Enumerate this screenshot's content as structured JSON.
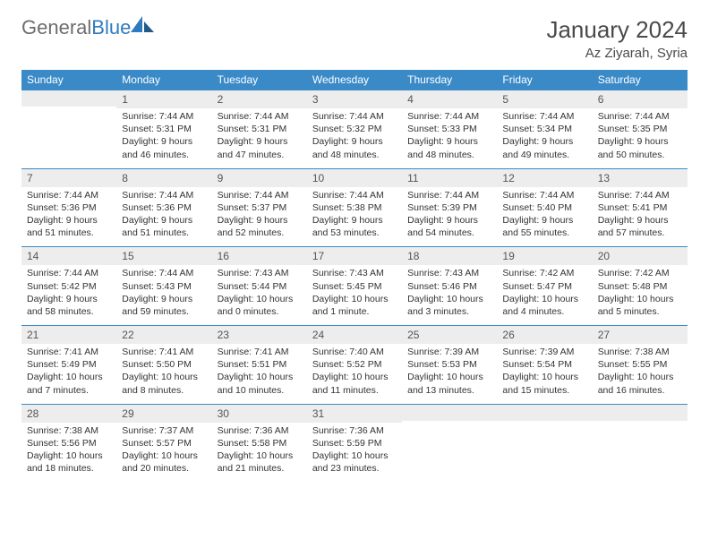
{
  "brand": {
    "part1": "General",
    "part2": "Blue"
  },
  "title": "January 2024",
  "location": "Az Ziyarah, Syria",
  "colors": {
    "header_bg": "#3a8ac8",
    "header_text": "#ffffff",
    "daynum_bg": "#ededed",
    "border": "#3a8ac8",
    "logo_gray": "#6d6d6d",
    "logo_blue": "#2f7bbf",
    "text": "#333333"
  },
  "dow": [
    "Sunday",
    "Monday",
    "Tuesday",
    "Wednesday",
    "Thursday",
    "Friday",
    "Saturday"
  ],
  "weeks": [
    [
      {
        "n": "",
        "l1": "",
        "l2": "",
        "l3": "",
        "l4": ""
      },
      {
        "n": "1",
        "l1": "Sunrise: 7:44 AM",
        "l2": "Sunset: 5:31 PM",
        "l3": "Daylight: 9 hours",
        "l4": "and 46 minutes."
      },
      {
        "n": "2",
        "l1": "Sunrise: 7:44 AM",
        "l2": "Sunset: 5:31 PM",
        "l3": "Daylight: 9 hours",
        "l4": "and 47 minutes."
      },
      {
        "n": "3",
        "l1": "Sunrise: 7:44 AM",
        "l2": "Sunset: 5:32 PM",
        "l3": "Daylight: 9 hours",
        "l4": "and 48 minutes."
      },
      {
        "n": "4",
        "l1": "Sunrise: 7:44 AM",
        "l2": "Sunset: 5:33 PM",
        "l3": "Daylight: 9 hours",
        "l4": "and 48 minutes."
      },
      {
        "n": "5",
        "l1": "Sunrise: 7:44 AM",
        "l2": "Sunset: 5:34 PM",
        "l3": "Daylight: 9 hours",
        "l4": "and 49 minutes."
      },
      {
        "n": "6",
        "l1": "Sunrise: 7:44 AM",
        "l2": "Sunset: 5:35 PM",
        "l3": "Daylight: 9 hours",
        "l4": "and 50 minutes."
      }
    ],
    [
      {
        "n": "7",
        "l1": "Sunrise: 7:44 AM",
        "l2": "Sunset: 5:36 PM",
        "l3": "Daylight: 9 hours",
        "l4": "and 51 minutes."
      },
      {
        "n": "8",
        "l1": "Sunrise: 7:44 AM",
        "l2": "Sunset: 5:36 PM",
        "l3": "Daylight: 9 hours",
        "l4": "and 51 minutes."
      },
      {
        "n": "9",
        "l1": "Sunrise: 7:44 AM",
        "l2": "Sunset: 5:37 PM",
        "l3": "Daylight: 9 hours",
        "l4": "and 52 minutes."
      },
      {
        "n": "10",
        "l1": "Sunrise: 7:44 AM",
        "l2": "Sunset: 5:38 PM",
        "l3": "Daylight: 9 hours",
        "l4": "and 53 minutes."
      },
      {
        "n": "11",
        "l1": "Sunrise: 7:44 AM",
        "l2": "Sunset: 5:39 PM",
        "l3": "Daylight: 9 hours",
        "l4": "and 54 minutes."
      },
      {
        "n": "12",
        "l1": "Sunrise: 7:44 AM",
        "l2": "Sunset: 5:40 PM",
        "l3": "Daylight: 9 hours",
        "l4": "and 55 minutes."
      },
      {
        "n": "13",
        "l1": "Sunrise: 7:44 AM",
        "l2": "Sunset: 5:41 PM",
        "l3": "Daylight: 9 hours",
        "l4": "and 57 minutes."
      }
    ],
    [
      {
        "n": "14",
        "l1": "Sunrise: 7:44 AM",
        "l2": "Sunset: 5:42 PM",
        "l3": "Daylight: 9 hours",
        "l4": "and 58 minutes."
      },
      {
        "n": "15",
        "l1": "Sunrise: 7:44 AM",
        "l2": "Sunset: 5:43 PM",
        "l3": "Daylight: 9 hours",
        "l4": "and 59 minutes."
      },
      {
        "n": "16",
        "l1": "Sunrise: 7:43 AM",
        "l2": "Sunset: 5:44 PM",
        "l3": "Daylight: 10 hours",
        "l4": "and 0 minutes."
      },
      {
        "n": "17",
        "l1": "Sunrise: 7:43 AM",
        "l2": "Sunset: 5:45 PM",
        "l3": "Daylight: 10 hours",
        "l4": "and 1 minute."
      },
      {
        "n": "18",
        "l1": "Sunrise: 7:43 AM",
        "l2": "Sunset: 5:46 PM",
        "l3": "Daylight: 10 hours",
        "l4": "and 3 minutes."
      },
      {
        "n": "19",
        "l1": "Sunrise: 7:42 AM",
        "l2": "Sunset: 5:47 PM",
        "l3": "Daylight: 10 hours",
        "l4": "and 4 minutes."
      },
      {
        "n": "20",
        "l1": "Sunrise: 7:42 AM",
        "l2": "Sunset: 5:48 PM",
        "l3": "Daylight: 10 hours",
        "l4": "and 5 minutes."
      }
    ],
    [
      {
        "n": "21",
        "l1": "Sunrise: 7:41 AM",
        "l2": "Sunset: 5:49 PM",
        "l3": "Daylight: 10 hours",
        "l4": "and 7 minutes."
      },
      {
        "n": "22",
        "l1": "Sunrise: 7:41 AM",
        "l2": "Sunset: 5:50 PM",
        "l3": "Daylight: 10 hours",
        "l4": "and 8 minutes."
      },
      {
        "n": "23",
        "l1": "Sunrise: 7:41 AM",
        "l2": "Sunset: 5:51 PM",
        "l3": "Daylight: 10 hours",
        "l4": "and 10 minutes."
      },
      {
        "n": "24",
        "l1": "Sunrise: 7:40 AM",
        "l2": "Sunset: 5:52 PM",
        "l3": "Daylight: 10 hours",
        "l4": "and 11 minutes."
      },
      {
        "n": "25",
        "l1": "Sunrise: 7:39 AM",
        "l2": "Sunset: 5:53 PM",
        "l3": "Daylight: 10 hours",
        "l4": "and 13 minutes."
      },
      {
        "n": "26",
        "l1": "Sunrise: 7:39 AM",
        "l2": "Sunset: 5:54 PM",
        "l3": "Daylight: 10 hours",
        "l4": "and 15 minutes."
      },
      {
        "n": "27",
        "l1": "Sunrise: 7:38 AM",
        "l2": "Sunset: 5:55 PM",
        "l3": "Daylight: 10 hours",
        "l4": "and 16 minutes."
      }
    ],
    [
      {
        "n": "28",
        "l1": "Sunrise: 7:38 AM",
        "l2": "Sunset: 5:56 PM",
        "l3": "Daylight: 10 hours",
        "l4": "and 18 minutes."
      },
      {
        "n": "29",
        "l1": "Sunrise: 7:37 AM",
        "l2": "Sunset: 5:57 PM",
        "l3": "Daylight: 10 hours",
        "l4": "and 20 minutes."
      },
      {
        "n": "30",
        "l1": "Sunrise: 7:36 AM",
        "l2": "Sunset: 5:58 PM",
        "l3": "Daylight: 10 hours",
        "l4": "and 21 minutes."
      },
      {
        "n": "31",
        "l1": "Sunrise: 7:36 AM",
        "l2": "Sunset: 5:59 PM",
        "l3": "Daylight: 10 hours",
        "l4": "and 23 minutes."
      },
      {
        "n": "",
        "l1": "",
        "l2": "",
        "l3": "",
        "l4": ""
      },
      {
        "n": "",
        "l1": "",
        "l2": "",
        "l3": "",
        "l4": ""
      },
      {
        "n": "",
        "l1": "",
        "l2": "",
        "l3": "",
        "l4": ""
      }
    ]
  ]
}
